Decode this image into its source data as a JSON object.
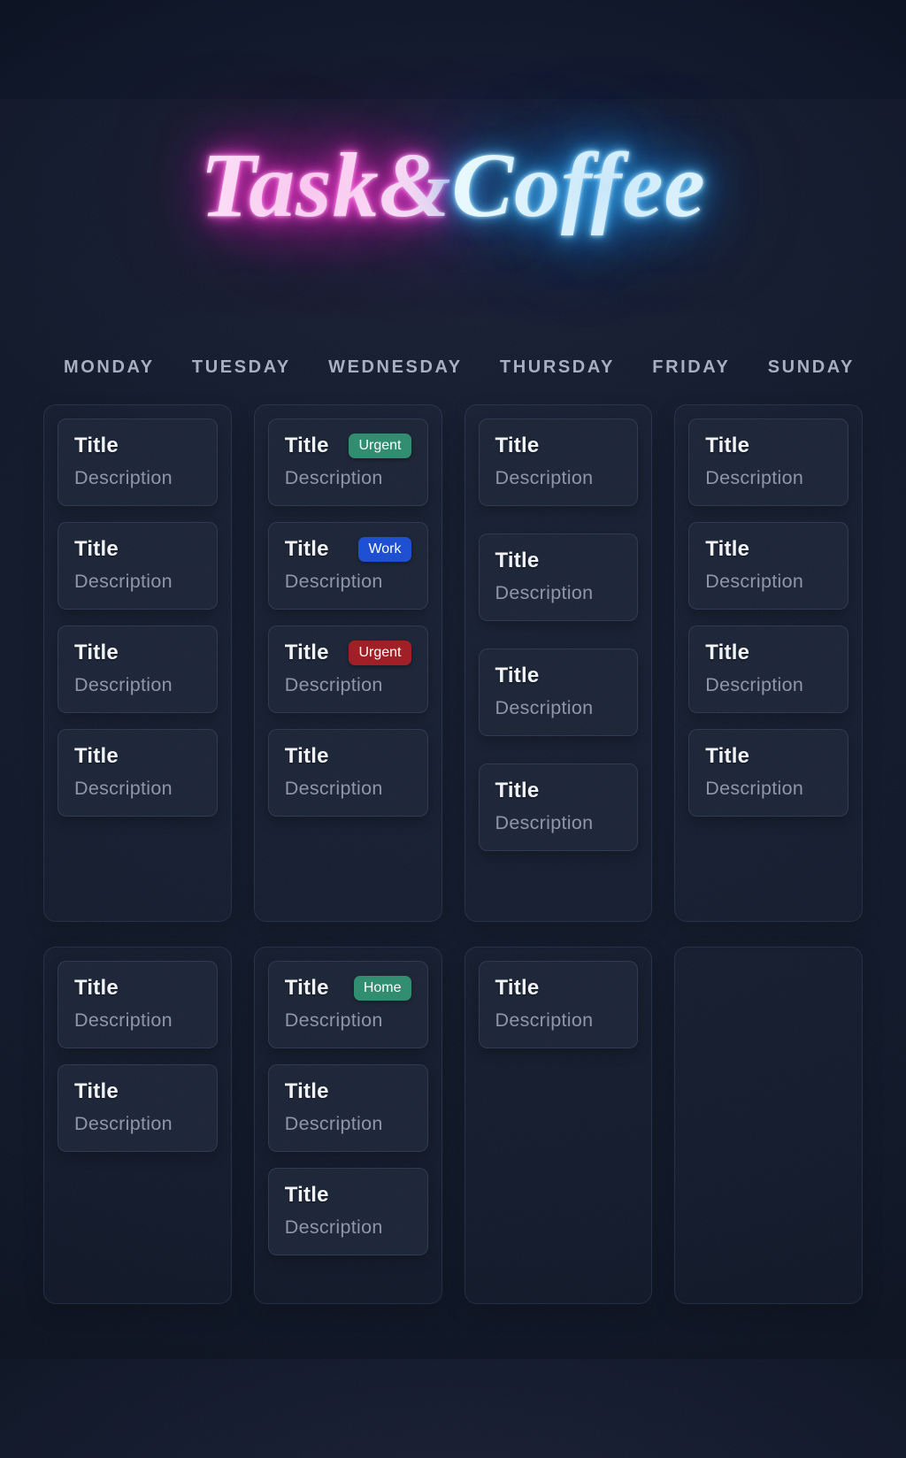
{
  "title": {
    "part1": "Task&",
    "part2": "Coffee"
  },
  "days": [
    "MONDAY",
    "TUESDAY",
    "WEDNESDAY",
    "THURSDAY",
    "FRIDAY",
    "SUNDAY"
  ],
  "colors": {
    "neon_pink": "#ef2cc9",
    "neon_blue": "#2fa7f5",
    "badge_green": "#2e8c6e",
    "badge_blue": "#1a4dd2",
    "badge_red": "#9f1c22"
  },
  "board": {
    "top": [
      {
        "cards": [
          {
            "title": "Title",
            "description": "Description"
          },
          {
            "title": "Title",
            "description": "Description"
          },
          {
            "title": "Title",
            "description": "Description"
          },
          {
            "title": "Title",
            "description": "Description"
          }
        ]
      },
      {
        "cards": [
          {
            "title": "Title",
            "description": "Description",
            "badge": {
              "label": "Urgent",
              "color_key": "green"
            }
          },
          {
            "title": "Title",
            "description": "Description",
            "badge": {
              "label": "Work",
              "color_key": "blue"
            }
          },
          {
            "title": "Title",
            "description": "Description",
            "badge": {
              "label": "Urgent",
              "color_key": "red"
            }
          },
          {
            "title": "Title",
            "description": "Description"
          }
        ]
      },
      {
        "cards": [
          {
            "title": "Title",
            "description": "Description"
          },
          {
            "title": "Title",
            "description": "Description"
          },
          {
            "title": "Title",
            "description": "Description"
          },
          {
            "title": "Title",
            "description": "Description"
          }
        ]
      },
      {
        "cards": [
          {
            "title": "Title",
            "description": "Description"
          },
          {
            "title": "Title",
            "description": "Description"
          },
          {
            "title": "Title",
            "description": "Description"
          },
          {
            "title": "Title",
            "description": "Description"
          }
        ]
      }
    ],
    "bottom": [
      {
        "cards": [
          {
            "title": "Title",
            "description": "Description"
          },
          {
            "title": "Title",
            "description": "Description"
          }
        ]
      },
      {
        "cards": [
          {
            "title": "Title",
            "description": "Description",
            "badge": {
              "label": "Home",
              "color_key": "green"
            }
          },
          {
            "title": "Title",
            "description": "Description"
          },
          {
            "title": "Title",
            "description": "Description"
          }
        ]
      },
      {
        "cards": [
          {
            "title": "Title",
            "description": "Description"
          }
        ]
      },
      {
        "cards": []
      }
    ]
  }
}
